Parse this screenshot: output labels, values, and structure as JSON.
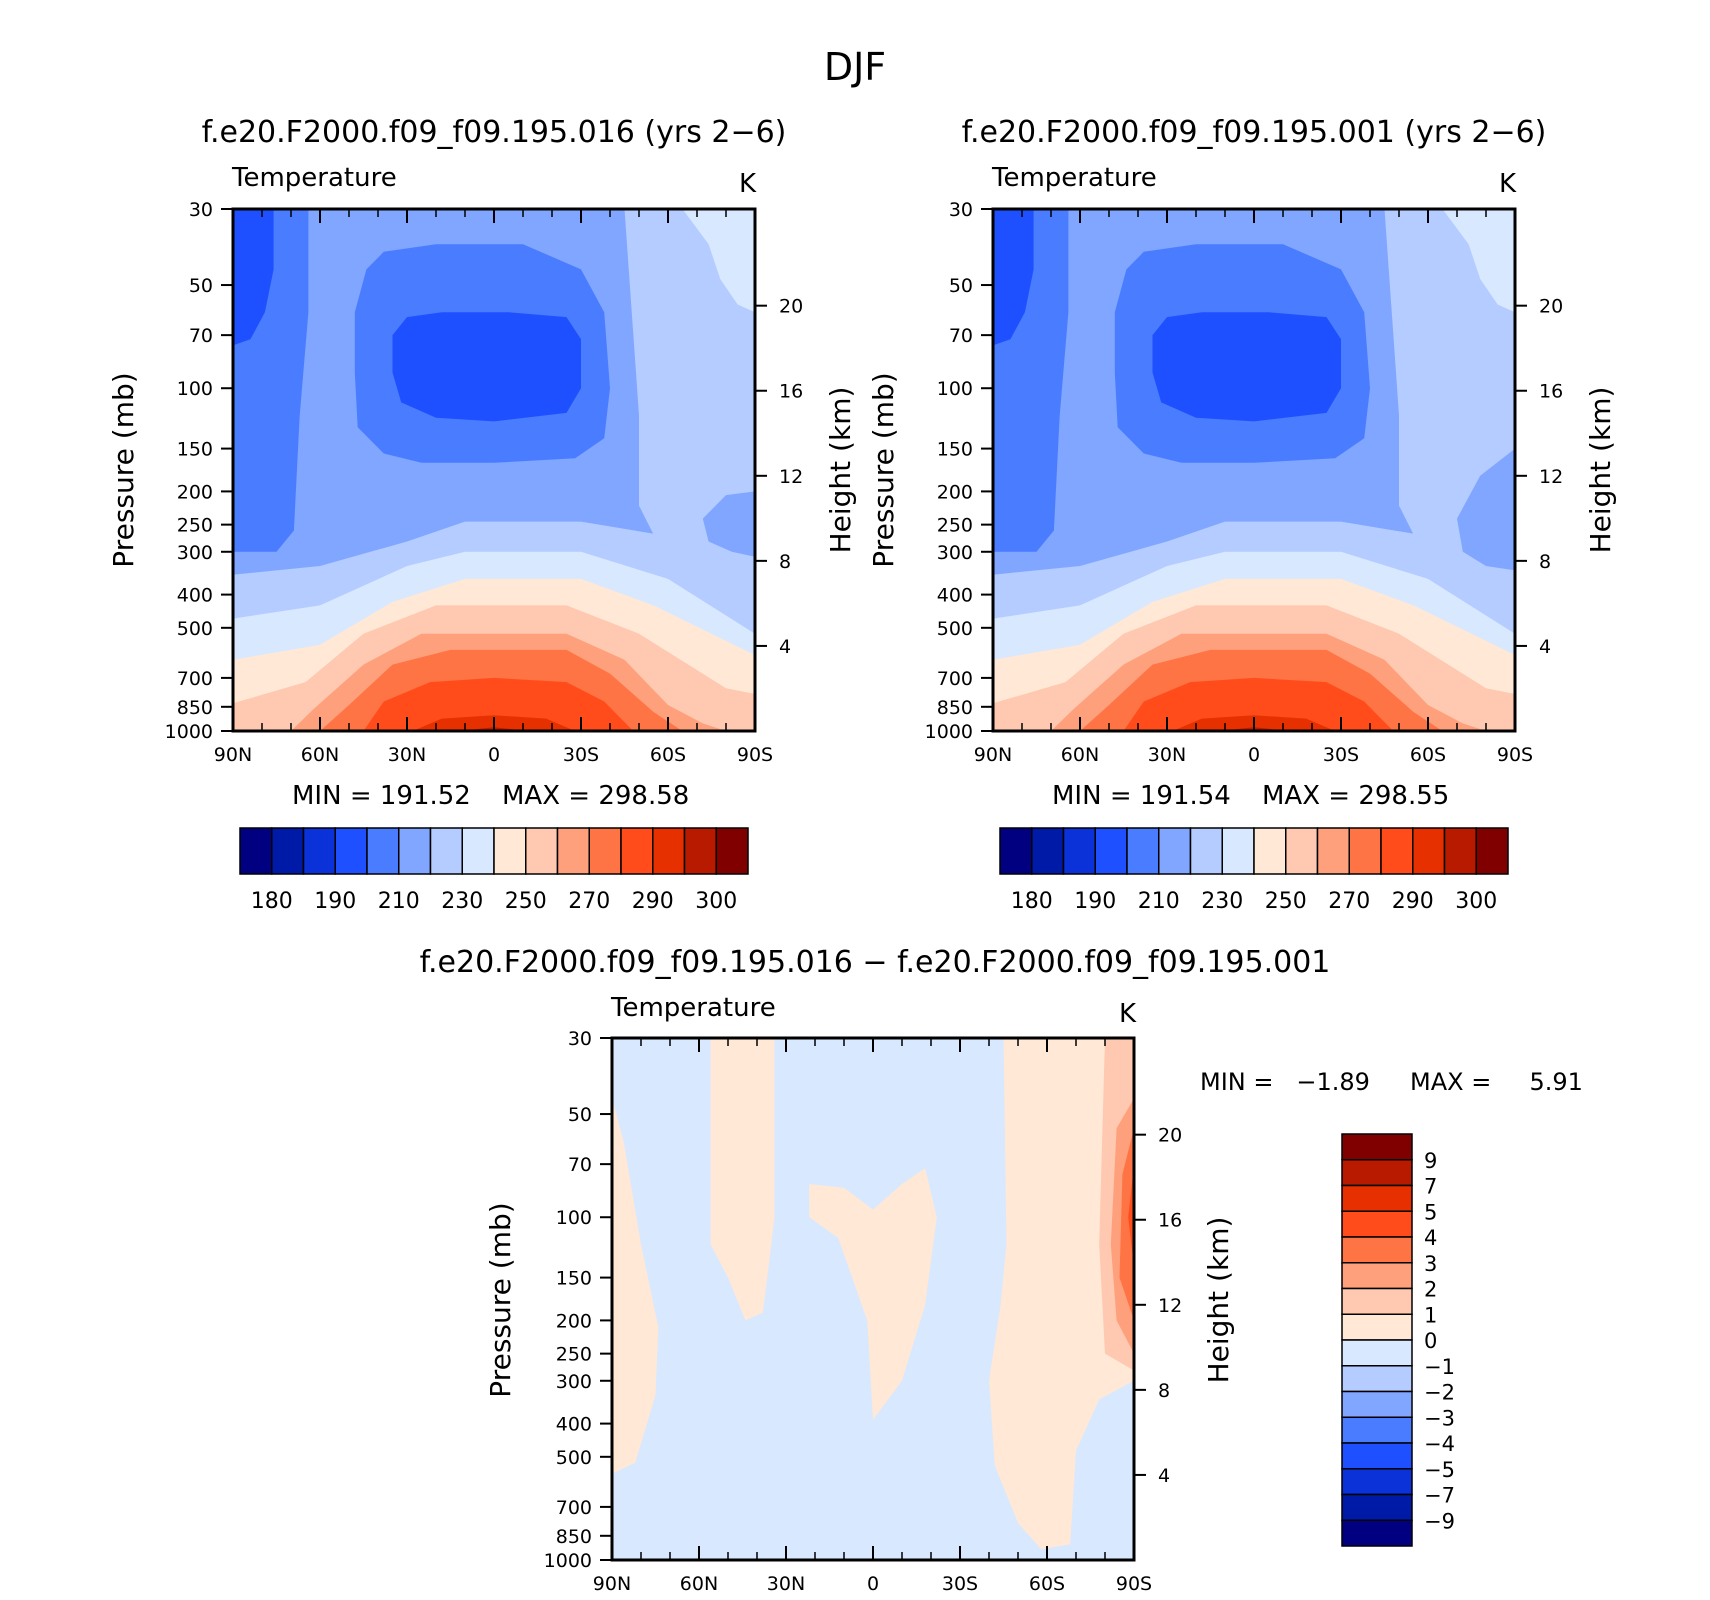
{
  "figure": {
    "title": "DJF"
  },
  "chart_data": [
    {
      "type": "heatmap",
      "title": "f.e20.F2000.f09_f09.195.016 (yrs 2−6)",
      "variable": "Temperature",
      "units": "K",
      "ylabel": "Pressure (mb)",
      "ylabel_right": "Height (km)",
      "x_ticks": [
        "90N",
        "60N",
        "30N",
        "0",
        "30S",
        "60S",
        "90S"
      ],
      "y_ticks": [
        "30",
        "50",
        "70",
        "100",
        "150",
        "200",
        "250",
        "300",
        "400",
        "500",
        "700",
        "850",
        "1000"
      ],
      "y_right_ticks": [
        "20",
        "16",
        "12",
        "8",
        "4"
      ],
      "min_label": "MIN = 191.52",
      "max_label": "MAX = 298.58",
      "colorbar_labels": [
        "180",
        "190",
        "210",
        "230",
        "250",
        "270",
        "290",
        "300"
      ],
      "y_scale": "log",
      "variant": "a"
    },
    {
      "type": "heatmap",
      "title": "f.e20.F2000.f09_f09.195.001 (yrs 2−6)",
      "variable": "Temperature",
      "units": "K",
      "ylabel": "Pressure (mb)",
      "ylabel_right": "Height (km)",
      "x_ticks": [
        "90N",
        "60N",
        "30N",
        "0",
        "30S",
        "60S",
        "90S"
      ],
      "y_ticks": [
        "30",
        "50",
        "70",
        "100",
        "150",
        "200",
        "250",
        "300",
        "400",
        "500",
        "700",
        "850",
        "1000"
      ],
      "y_right_ticks": [
        "20",
        "16",
        "12",
        "8",
        "4"
      ],
      "min_label": "MIN = 191.54",
      "max_label": "MAX = 298.55",
      "colorbar_labels": [
        "180",
        "190",
        "210",
        "230",
        "250",
        "270",
        "290",
        "300"
      ],
      "y_scale": "log",
      "variant": "b"
    },
    {
      "type": "heatmap",
      "title": "f.e20.F2000.f09_f09.195.016 − f.e20.F2000.f09_f09.195.001",
      "variable": "Temperature",
      "units": "K",
      "ylabel": "Pressure (mb)",
      "ylabel_right": "Height (km)",
      "x_ticks": [
        "90N",
        "60N",
        "30N",
        "0",
        "30S",
        "60S",
        "90S"
      ],
      "y_ticks": [
        "30",
        "50",
        "70",
        "100",
        "150",
        "200",
        "250",
        "300",
        "400",
        "500",
        "700",
        "850",
        "1000"
      ],
      "y_right_ticks": [
        "20",
        "16",
        "12",
        "8",
        "4"
      ],
      "min_label": "MIN =   −1.89",
      "max_label": "MAX =     5.91",
      "colorbar_labels": [
        "9",
        "7",
        "5",
        "4",
        "3",
        "2",
        "1",
        "0",
        "−1",
        "−2",
        "−3",
        "−4",
        "−5",
        "−7",
        "−9"
      ],
      "y_scale": "log"
    }
  ],
  "colors": {
    "temp_palette": [
      "#000080",
      "#001aa8",
      "#0a32d8",
      "#1e50ff",
      "#4a7cff",
      "#80a6ff",
      "#b4ccff",
      "#d8e8ff",
      "#ffe8d6",
      "#ffc8b0",
      "#ffa07c",
      "#ff7444",
      "#ff4c1a",
      "#e63000",
      "#b81a00",
      "#800000"
    ],
    "diff_palette_top_to_bottom": [
      "#800000",
      "#b81a00",
      "#e63000",
      "#ff4c1a",
      "#ff7444",
      "#ffa07c",
      "#ffc8b0",
      "#ffe8d6",
      "#d8e8ff",
      "#b4ccff",
      "#80a6ff",
      "#4a7cff",
      "#1e50ff",
      "#0a32d8",
      "#001aa8",
      "#000080"
    ]
  }
}
